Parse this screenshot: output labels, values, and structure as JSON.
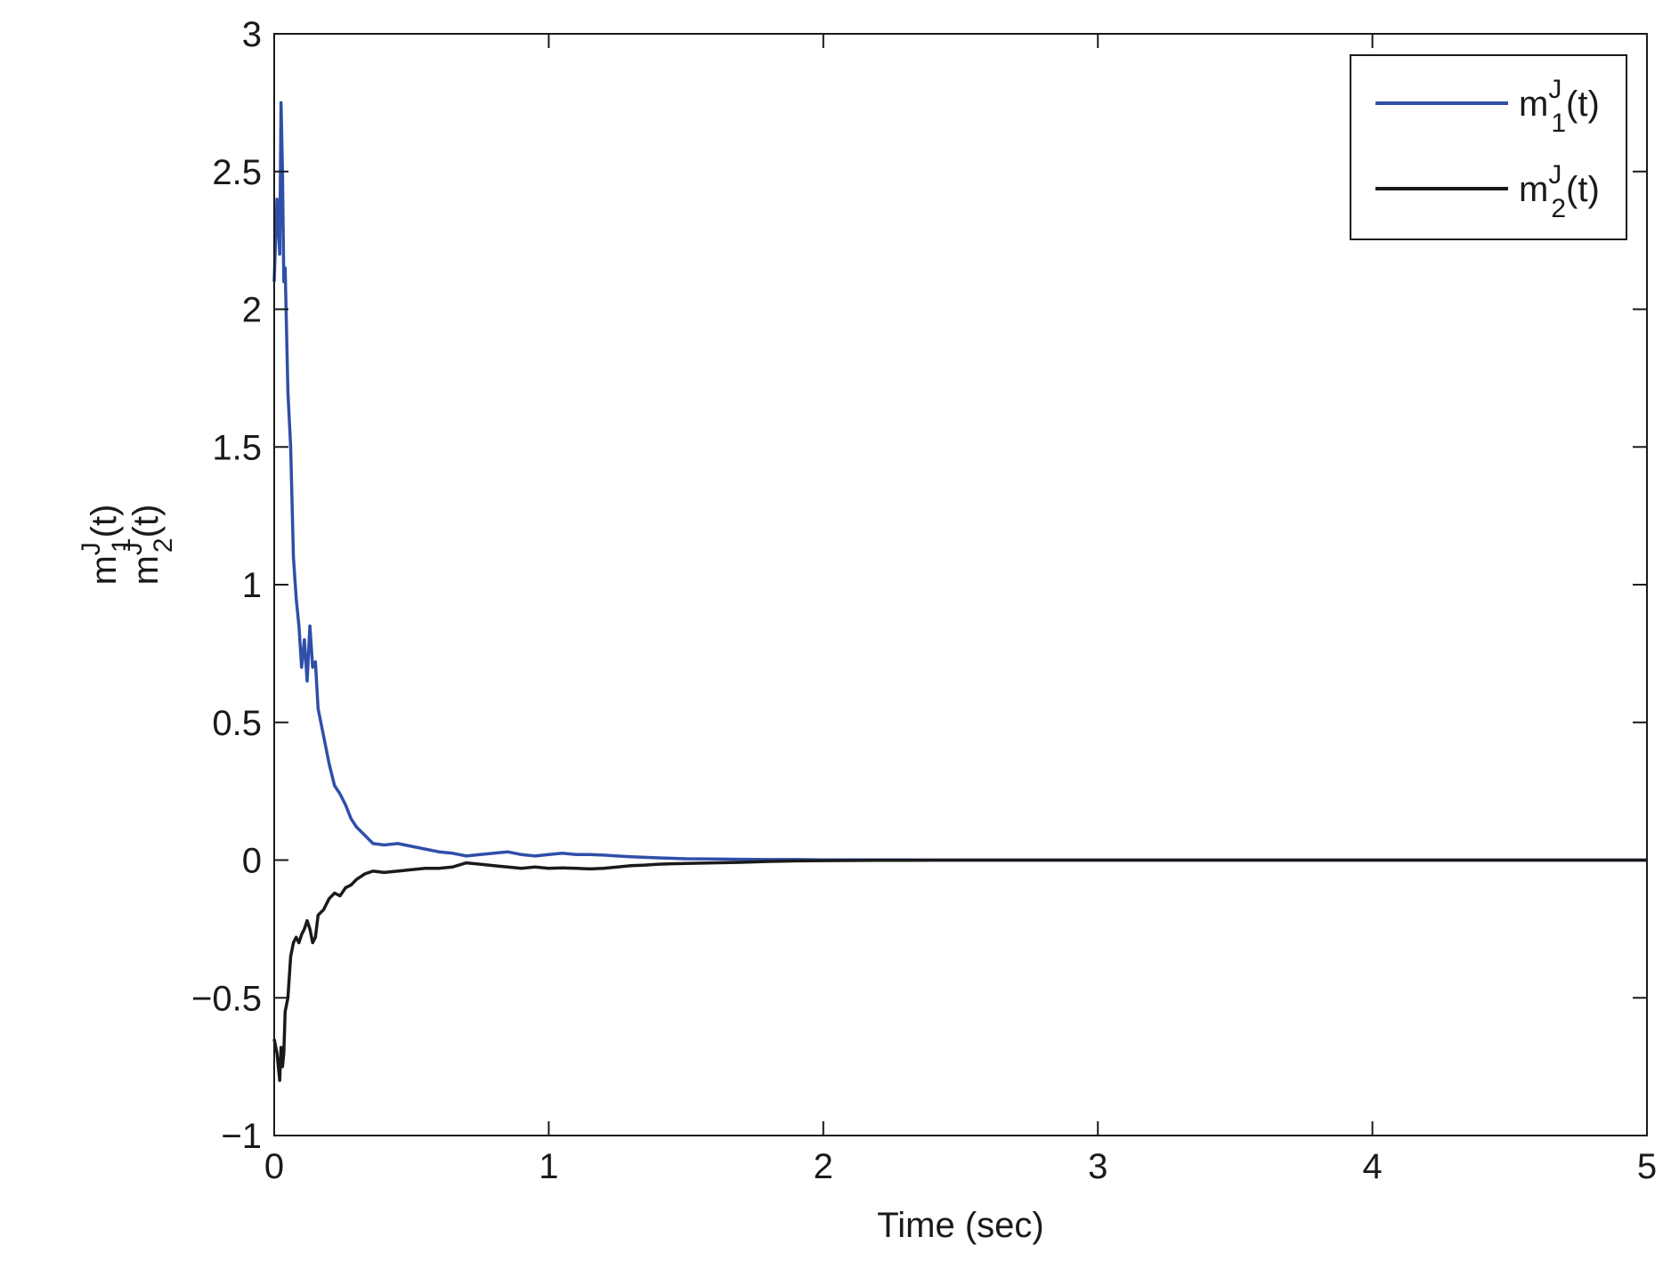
{
  "chart_data": {
    "type": "line",
    "xlabel": "Time (sec)",
    "ylabel": {
      "line1": {
        "base": "m",
        "sup": "J",
        "sub": "1",
        "tail": "(t)"
      },
      "line2": {
        "base": "m",
        "sup": "J",
        "sub": "2",
        "tail": "(t)"
      }
    },
    "xlim": [
      0,
      5
    ],
    "ylim": [
      -1,
      3
    ],
    "x_ticks": [
      0,
      1,
      2,
      3,
      4,
      5
    ],
    "x_tick_labels": [
      "0",
      "1",
      "2",
      "3",
      "4",
      "5"
    ],
    "y_ticks": [
      -1,
      -0.5,
      0,
      0.5,
      1,
      1.5,
      2,
      2.5,
      3
    ],
    "y_tick_labels": [
      "−1",
      "−0.5",
      "0",
      "0.5",
      "1",
      "1.5",
      "2",
      "2.5",
      "3"
    ],
    "grid": false,
    "legend_position": "top-right",
    "series": [
      {
        "name": "m1J(t)",
        "legend": {
          "base": "m",
          "sup": "J",
          "sub": "1",
          "tail": "(t)"
        },
        "color": "#2f4fa8",
        "x": [
          0,
          0.01,
          0.02,
          0.025,
          0.03,
          0.035,
          0.04,
          0.05,
          0.06,
          0.07,
          0.08,
          0.09,
          0.1,
          0.11,
          0.12,
          0.13,
          0.14,
          0.15,
          0.16,
          0.18,
          0.2,
          0.22,
          0.24,
          0.26,
          0.28,
          0.3,
          0.33,
          0.36,
          0.4,
          0.45,
          0.5,
          0.55,
          0.6,
          0.65,
          0.7,
          0.75,
          0.8,
          0.85,
          0.9,
          0.95,
          1.0,
          1.05,
          1.1,
          1.15,
          1.2,
          1.25,
          1.3,
          1.35,
          1.4,
          1.5,
          1.6,
          1.7,
          1.8,
          1.9,
          2.0,
          2.2,
          2.5,
          3.0,
          3.5,
          4.0,
          4.5,
          5.0
        ],
        "y": [
          2.1,
          2.4,
          2.2,
          2.75,
          2.5,
          2.1,
          2.15,
          1.7,
          1.5,
          1.1,
          0.95,
          0.85,
          0.7,
          0.8,
          0.65,
          0.85,
          0.7,
          0.72,
          0.55,
          0.45,
          0.35,
          0.27,
          0.24,
          0.2,
          0.15,
          0.12,
          0.09,
          0.06,
          0.055,
          0.06,
          0.05,
          0.04,
          0.03,
          0.025,
          0.015,
          0.02,
          0.025,
          0.03,
          0.02,
          0.015,
          0.02,
          0.025,
          0.02,
          0.02,
          0.018,
          0.015,
          0.012,
          0.01,
          0.008,
          0.005,
          0.004,
          0.003,
          0.002,
          0.002,
          0.001,
          0.001,
          0.0,
          0.0,
          0.0,
          0.0,
          0.0,
          0.0
        ]
      },
      {
        "name": "m2J(t)",
        "legend": {
          "base": "m",
          "sup": "J",
          "sub": "2",
          "tail": "(t)"
        },
        "color": "#1a1a1a",
        "x": [
          0,
          0.01,
          0.02,
          0.025,
          0.03,
          0.035,
          0.04,
          0.05,
          0.06,
          0.07,
          0.08,
          0.09,
          0.1,
          0.11,
          0.12,
          0.13,
          0.14,
          0.15,
          0.16,
          0.18,
          0.2,
          0.22,
          0.24,
          0.26,
          0.28,
          0.3,
          0.33,
          0.36,
          0.4,
          0.45,
          0.5,
          0.55,
          0.6,
          0.65,
          0.7,
          0.75,
          0.8,
          0.85,
          0.9,
          0.95,
          1.0,
          1.05,
          1.1,
          1.15,
          1.2,
          1.25,
          1.3,
          1.35,
          1.4,
          1.5,
          1.6,
          1.7,
          1.8,
          1.9,
          2.0,
          2.2,
          2.5,
          3.0,
          3.5,
          4.0,
          4.5,
          5.0
        ],
        "y": [
          -0.65,
          -0.7,
          -0.8,
          -0.68,
          -0.75,
          -0.7,
          -0.55,
          -0.5,
          -0.35,
          -0.3,
          -0.28,
          -0.3,
          -0.27,
          -0.25,
          -0.22,
          -0.25,
          -0.3,
          -0.28,
          -0.2,
          -0.18,
          -0.14,
          -0.12,
          -0.13,
          -0.1,
          -0.09,
          -0.07,
          -0.05,
          -0.04,
          -0.045,
          -0.04,
          -0.035,
          -0.03,
          -0.03,
          -0.025,
          -0.01,
          -0.015,
          -0.02,
          -0.025,
          -0.03,
          -0.025,
          -0.03,
          -0.028,
          -0.03,
          -0.032,
          -0.03,
          -0.025,
          -0.02,
          -0.018,
          -0.015,
          -0.012,
          -0.01,
          -0.008,
          -0.005,
          -0.003,
          -0.002,
          -0.001,
          0.0,
          0.0,
          0.0,
          0.0,
          0.0,
          0.0
        ]
      }
    ]
  }
}
